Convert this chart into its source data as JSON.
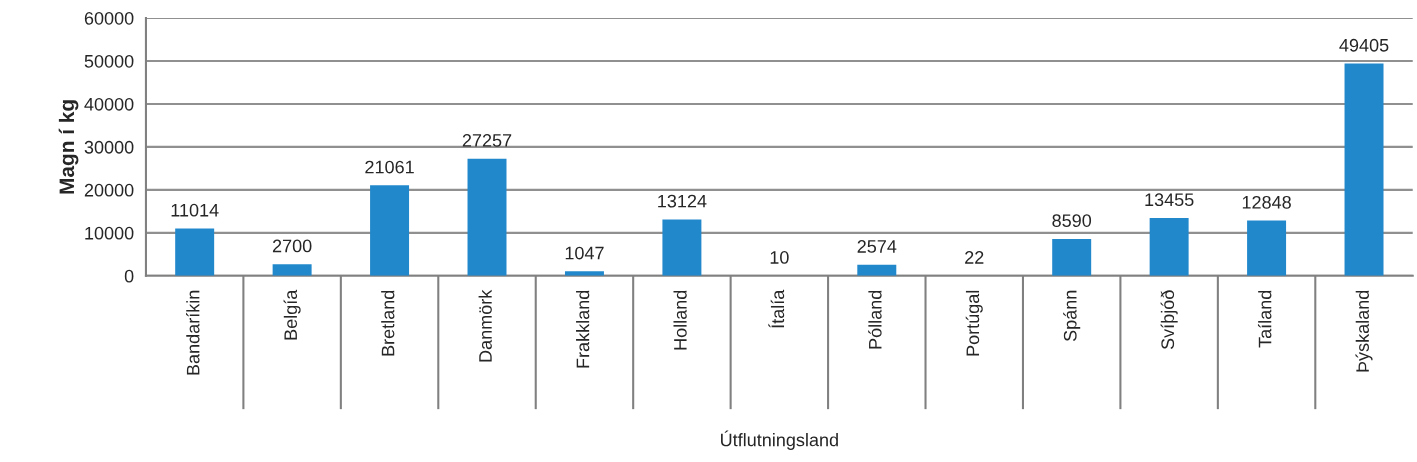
{
  "chart_data": {
    "type": "bar",
    "xlabel": "Útflutningsland",
    "ylabel": "Magn í kg",
    "categories": [
      "Bandaríkin",
      "Belgía",
      "Bretland",
      "Danmörk",
      "Frakkland",
      "Holland",
      "Ítalía",
      "Pólland",
      "Portúgal",
      "Spánn",
      "Svíþjóð",
      "Taíland",
      "Þýskaland"
    ],
    "values": [
      11014,
      2700,
      21061,
      27257,
      1047,
      13124,
      10,
      2574,
      22,
      8590,
      13455,
      12848,
      49405
    ],
    "color": "#2288cc",
    "ylim": [
      0,
      60000
    ],
    "yticks": [
      0,
      10000,
      20000,
      30000,
      40000,
      50000,
      60000
    ],
    "grid": "y",
    "data_labels": true
  }
}
